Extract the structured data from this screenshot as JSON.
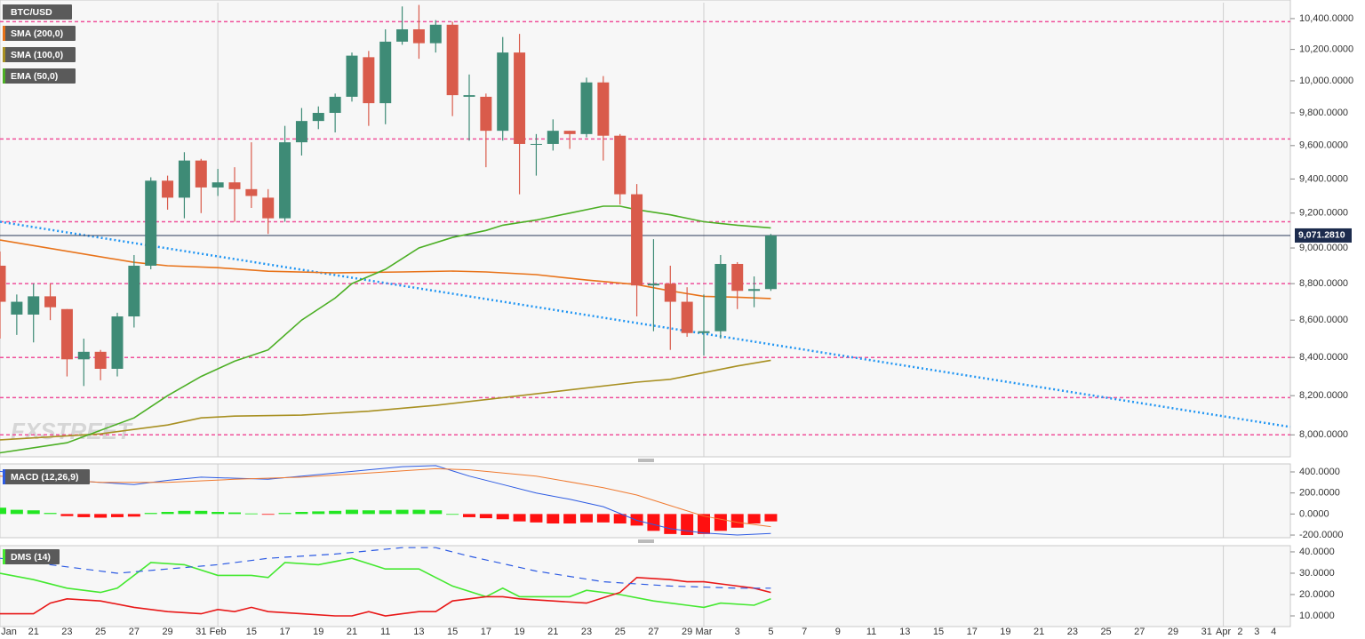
{
  "chart_data": [
    {
      "type": "candlestick",
      "name": "BTC/USD",
      "log": true,
      "ylim": [
        7890,
        10505
      ],
      "yticks": [
        {
          "value": 10400,
          "label": "10,400.0000"
        },
        {
          "value": 10200,
          "label": "10,200.0000"
        },
        {
          "value": 10000,
          "label": "10,000.0000"
        },
        {
          "value": 9800,
          "label": "9,800.0000"
        },
        {
          "value": 9600,
          "label": "9,600.0000"
        },
        {
          "value": 9400,
          "label": "9,400.0000"
        },
        {
          "value": 9200,
          "label": "9,200.0000"
        },
        {
          "value": 9000,
          "label": "9,000.0000"
        },
        {
          "value": 8800,
          "label": "8,800.0000"
        },
        {
          "value": 8600,
          "label": "8,600.0000"
        },
        {
          "value": 8400,
          "label": "8,400.0000"
        },
        {
          "value": 8200,
          "label": "8,200.0000"
        },
        {
          "value": 8000,
          "label": "8,000.0000"
        }
      ],
      "last_price": {
        "value": 9071.281,
        "label": "9,071.2810"
      },
      "up_color": "#3e8b76",
      "down_color": "#d95b4b",
      "x": [
        0,
        1,
        2,
        3,
        4,
        5,
        6,
        7,
        8,
        9,
        10,
        11,
        12,
        13,
        14,
        15,
        16,
        17,
        18,
        19,
        20,
        21,
        22,
        23,
        24,
        25,
        26,
        27,
        28,
        29,
        30,
        31,
        32,
        33,
        34,
        35,
        36,
        37,
        38,
        39,
        40,
        41,
        42,
        43,
        44,
        45,
        46
      ],
      "open": [
        8900,
        8630,
        8630,
        8730,
        8660,
        8390,
        8430,
        8340,
        8620,
        8900,
        9390,
        9290,
        9510,
        9350,
        9380,
        9340,
        9290,
        9170,
        9620,
        9750,
        9800,
        9900,
        10150,
        9860,
        10250,
        10330,
        10240,
        10360,
        9900,
        9900,
        9690,
        10180,
        9610,
        9610,
        9690,
        9670,
        9990,
        9660,
        9310,
        8790,
        8800,
        8700,
        8530,
        8540,
        8910,
        8760,
        8770
      ],
      "high": [
        8980,
        8740,
        8800,
        8800,
        8660,
        8500,
        8440,
        8640,
        8960,
        9410,
        9420,
        9560,
        9520,
        9460,
        9470,
        9620,
        9340,
        9720,
        9830,
        9840,
        9920,
        10180,
        10190,
        10330,
        10480,
        10490,
        10390,
        10380,
        10040,
        9920,
        10280,
        10300,
        9670,
        9760,
        9690,
        10020,
        10030,
        9670,
        9370,
        9050,
        8900,
        8780,
        8740,
        8960,
        8920,
        8840,
        9080
      ],
      "low": [
        8500,
        8520,
        8480,
        8600,
        8300,
        8250,
        8280,
        8300,
        8560,
        8880,
        9220,
        9170,
        9200,
        9300,
        9150,
        9230,
        9080,
        9150,
        9540,
        9700,
        9680,
        9870,
        9720,
        9730,
        10230,
        10140,
        10180,
        9780,
        9630,
        9470,
        9630,
        9310,
        9420,
        9570,
        9580,
        9650,
        9510,
        9250,
        8620,
        8540,
        8440,
        8510,
        8410,
        8500,
        8660,
        8670,
        8760
      ],
      "close": [
        8700,
        8700,
        8730,
        8670,
        8390,
        8430,
        8340,
        8620,
        8900,
        9390,
        9290,
        9510,
        9350,
        9380,
        9340,
        9300,
        9170,
        9620,
        9750,
        9800,
        9900,
        10160,
        9860,
        10250,
        10330,
        10240,
        10360,
        9910,
        9910,
        9690,
        10180,
        9610,
        9610,
        9690,
        9670,
        9990,
        9660,
        9310,
        8790,
        8800,
        8700,
        8530,
        8540,
        8910,
        8760,
        8770,
        9071.281
      ],
      "series": [
        {
          "name": "SMA (200,0)",
          "color": "#e8731a",
          "x": [
            0,
            8,
            10,
            13,
            16,
            20,
            24,
            27,
            29,
            32,
            35,
            38,
            40,
            42,
            44,
            46
          ],
          "values": [
            9045,
            8919,
            8900,
            8889,
            8869,
            8860,
            8865,
            8870,
            8865,
            8850,
            8820,
            8795,
            8760,
            8730,
            8725,
            8718
          ]
        },
        {
          "name": "SMA (100,0)",
          "color": "#a89022",
          "x": [
            0,
            6,
            10,
            12,
            14,
            18,
            22,
            26,
            30,
            34,
            38,
            40,
            42,
            44,
            46
          ],
          "values": [
            7975,
            8005,
            8050,
            8086,
            8095,
            8100,
            8120,
            8150,
            8190,
            8230,
            8270,
            8285,
            8320,
            8355,
            8385
          ]
        },
        {
          "name": "EMA (50,0)",
          "color": "#4caf25",
          "x": [
            0,
            4,
            8,
            10,
            12,
            14,
            16,
            18,
            20,
            21,
            23,
            25,
            27,
            29,
            30,
            32,
            34,
            36,
            37,
            38,
            40,
            42,
            44,
            46
          ],
          "values": [
            7910,
            7960,
            8086,
            8200,
            8300,
            8380,
            8440,
            8600,
            8720,
            8800,
            8880,
            9000,
            9060,
            9100,
            9130,
            9160,
            9200,
            9240,
            9240,
            9220,
            9190,
            9150,
            9130,
            9115
          ]
        }
      ],
      "levels": [
        10380,
        9640,
        9150,
        8800,
        8400,
        8190,
        8000
      ],
      "level_color": "#f0509a",
      "trendline": {
        "x": [
          0,
          77
        ],
        "values": [
          9150,
          8040
        ],
        "color": "#2196f3"
      },
      "watermark": "FXSTREET"
    },
    {
      "type": "macd",
      "name": "MACD (12,26,9)",
      "ylim": [
        -225,
        476
      ],
      "yticks": [
        {
          "value": 400,
          "label": "400.0000"
        },
        {
          "value": 200,
          "label": "200.0000"
        },
        {
          "value": 0,
          "label": "0.0000"
        },
        {
          "value": -200,
          "label": "-200.0000"
        }
      ],
      "histogram": {
        "x": [
          0,
          1,
          2,
          3,
          4,
          5,
          6,
          7,
          8,
          9,
          10,
          11,
          12,
          13,
          14,
          15,
          16,
          17,
          18,
          19,
          20,
          21,
          22,
          23,
          24,
          25,
          26,
          27,
          28,
          29,
          30,
          31,
          32,
          33,
          34,
          35,
          36,
          37,
          38,
          39,
          40,
          41,
          42,
          43,
          44,
          45,
          46
        ],
        "values": [
          60,
          40,
          35,
          10,
          -20,
          -30,
          -35,
          -30,
          -25,
          10,
          20,
          30,
          30,
          20,
          15,
          5,
          -5,
          10,
          20,
          25,
          30,
          40,
          35,
          35,
          40,
          40,
          35,
          0,
          -30,
          -40,
          -50,
          -70,
          -80,
          -90,
          -90,
          -80,
          -80,
          -90,
          -110,
          -160,
          -190,
          -200,
          -190,
          -160,
          -130,
          -90,
          -70
        ],
        "up_color": "#22e622",
        "down_color": "#ff1010"
      },
      "series": [
        {
          "color": "#2d5be3",
          "x": [
            0,
            4,
            8,
            10,
            12,
            16,
            20,
            22,
            24,
            26,
            28,
            30,
            32,
            34,
            36,
            38,
            40,
            42,
            44,
            46
          ],
          "values": [
            405,
            320,
            280,
            320,
            350,
            330,
            390,
            420,
            450,
            460,
            360,
            280,
            200,
            140,
            70,
            -60,
            -140,
            -180,
            -200,
            -185
          ]
        },
        {
          "color": "#f07a30",
          "x": [
            0,
            6,
            10,
            14,
            18,
            22,
            26,
            28,
            32,
            36,
            38,
            40,
            42,
            44,
            46
          ],
          "values": [
            360,
            300,
            300,
            330,
            350,
            390,
            430,
            420,
            360,
            250,
            180,
            80,
            -20,
            -80,
            -120
          ]
        }
      ]
    },
    {
      "type": "dms",
      "name": "DMS (14)",
      "ylim": [
        5,
        42.9
      ],
      "yticks": [
        {
          "value": 40,
          "label": "40.0000"
        },
        {
          "value": 30,
          "label": "30.0000"
        },
        {
          "value": 20,
          "label": "20.0000"
        },
        {
          "value": 10,
          "label": "10.0000"
        }
      ],
      "xlim": [
        0,
        77
      ],
      "xticks": [
        {
          "value": 0,
          "label": "Jan"
        },
        {
          "value": 2,
          "label": "21"
        },
        {
          "value": 4,
          "label": "23"
        },
        {
          "value": 6,
          "label": "25"
        },
        {
          "value": 8,
          "label": "27"
        },
        {
          "value": 10,
          "label": "29"
        },
        {
          "value": 12,
          "label": "31"
        },
        {
          "value": 13,
          "label": "Feb"
        },
        15,
        17,
        19,
        21,
        {
          "value": 23,
          "label": "11"
        },
        {
          "value": 25,
          "label": "13"
        },
        {
          "value": 27,
          "label": "15"
        },
        {
          "value": 29,
          "label": "17"
        },
        {
          "value": 31,
          "label": "19"
        },
        {
          "value": 33,
          "label": "21"
        },
        {
          "value": 35,
          "label": "23"
        },
        {
          "value": 37,
          "label": "25"
        },
        {
          "value": 39,
          "label": "27"
        },
        {
          "value": 41,
          "label": "29"
        },
        {
          "value": 42,
          "label": "Mar"
        },
        {
          "value": 44,
          "label": "3"
        },
        {
          "value": 46,
          "label": "5"
        },
        {
          "value": 48,
          "label": "7"
        },
        {
          "value": 50,
          "label": "9"
        },
        {
          "value": 52,
          "label": "11"
        },
        {
          "value": 54,
          "label": "13"
        },
        {
          "value": 56,
          "label": "15"
        },
        {
          "value": 58,
          "label": "17"
        },
        {
          "value": 60,
          "label": "19"
        },
        {
          "value": 62,
          "label": "21"
        },
        {
          "value": 64,
          "label": "23"
        },
        {
          "value": 66,
          "label": "25"
        },
        {
          "value": 68,
          "label": "27"
        },
        {
          "value": 70,
          "label": "29"
        },
        {
          "value": 72,
          "label": "31"
        },
        {
          "value": 73,
          "label": "Apr"
        },
        {
          "value": 74,
          "label": "2"
        },
        {
          "value": 75,
          "label": "3"
        },
        {
          "value": 76,
          "label": "4"
        }
      ],
      "series": [
        {
          "color": "#44e830",
          "x": [
            0,
            2,
            4,
            6,
            7,
            9,
            11,
            13,
            15,
            16,
            17,
            19,
            21,
            23,
            25,
            27,
            29,
            30,
            31,
            33,
            34,
            35,
            37,
            39,
            41,
            42,
            43,
            45,
            46
          ],
          "values": [
            30,
            27,
            23,
            21,
            23,
            35,
            34,
            29,
            29,
            28,
            35,
            34,
            37,
            32,
            32,
            24,
            19,
            23,
            19,
            19,
            19,
            22,
            20,
            17,
            15,
            14,
            16,
            15,
            18
          ]
        },
        {
          "color": "#e81818",
          "x": [
            0,
            1,
            2,
            3,
            4,
            6,
            8,
            10,
            12,
            13,
            14,
            15,
            16,
            18,
            20,
            21,
            22,
            23,
            24,
            25,
            26,
            27,
            29,
            30,
            31,
            33,
            35,
            37,
            38,
            40,
            41,
            42,
            43,
            45,
            46
          ],
          "values": [
            11,
            11,
            11,
            16,
            18,
            17,
            14,
            12,
            11,
            13,
            12,
            14,
            12,
            11,
            10,
            10,
            12,
            10,
            11,
            12,
            12,
            17,
            19,
            19,
            18,
            17,
            16,
            21,
            28,
            27,
            26,
            26,
            25,
            23,
            21
          ]
        },
        {
          "color": "#2d5be3",
          "dashed": true,
          "x": [
            0,
            4,
            7,
            10,
            13,
            16,
            20,
            24,
            26,
            28,
            32,
            36,
            40,
            44,
            46
          ],
          "values": [
            37,
            33,
            30,
            32,
            34,
            37,
            39,
            42,
            42,
            38,
            31,
            26,
            24,
            23,
            23
          ]
        }
      ]
    }
  ]
}
